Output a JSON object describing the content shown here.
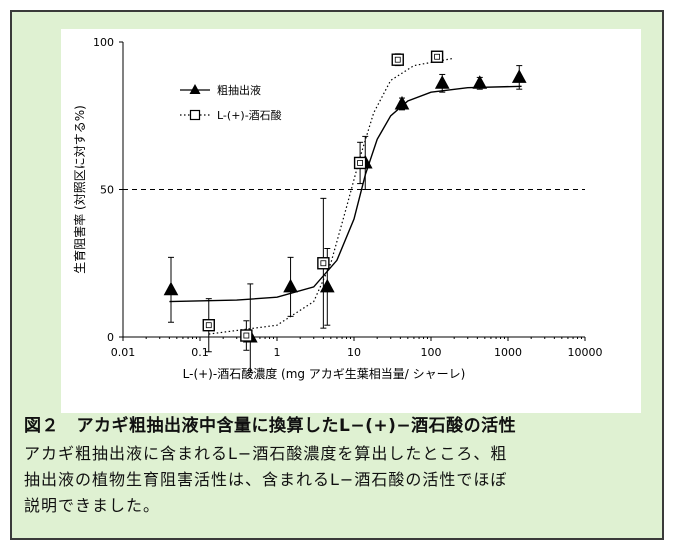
{
  "figure_title": "図２　アカギ粗抽出液中含量に換算したL−(+)−酒石酸の活性",
  "caption_lines": [
    "アカギ粗抽出液に含まれるL−酒石酸濃度を算出したところ、粗",
    "抽出液の植物生育阻害活性は、含まれるL−酒石酸の活性でほぼ",
    "説明できました。"
  ],
  "colors": {
    "panel_background": "#dff1d2",
    "border": "#3a3a3a",
    "series_color": "#000000"
  },
  "chart_data": {
    "type": "scatter",
    "xlabel": "L-(+)-酒石酸濃度 (mg アカギ生葉相当量/ シャーレ)",
    "ylabel": "生育阻害率 (対照区に対する%)",
    "x_scale": "log",
    "xlim": [
      0.01,
      10000
    ],
    "ylim": [
      0,
      100
    ],
    "x_ticks": [
      "0.01",
      "0.1",
      "1",
      "10",
      "100",
      "1000",
      "10000"
    ],
    "x_tick_values": [
      0.01,
      0.1,
      1,
      10,
      100,
      1000,
      10000
    ],
    "y_ticks": [
      "0",
      "50",
      "100"
    ],
    "y_tick_values": [
      0,
      50,
      100
    ],
    "reference_line": {
      "y": 50,
      "style": "dashed"
    },
    "legend_position": "top-left",
    "grid": false,
    "series": [
      {
        "name": "粗抽出液",
        "marker": "filled-triangle",
        "line": "solid",
        "points": [
          {
            "x": 0.042,
            "y": 16,
            "err": 11
          },
          {
            "x": 0.45,
            "y": 0,
            "err": 18
          },
          {
            "x": 1.5,
            "y": 17,
            "err": 10
          },
          {
            "x": 4.5,
            "y": 17,
            "err": 13
          },
          {
            "x": 14,
            "y": 59,
            "err": 9
          },
          {
            "x": 42,
            "y": 79,
            "err": 2
          },
          {
            "x": 140,
            "y": 86,
            "err": 3
          },
          {
            "x": 430,
            "y": 86,
            "err": 2
          },
          {
            "x": 1400,
            "y": 88,
            "err": 4
          }
        ],
        "curve": [
          {
            "x": 0.04,
            "y": 12
          },
          {
            "x": 0.3,
            "y": 12.5
          },
          {
            "x": 1,
            "y": 13.5
          },
          {
            "x": 3,
            "y": 17
          },
          {
            "x": 6,
            "y": 26
          },
          {
            "x": 10,
            "y": 40
          },
          {
            "x": 14,
            "y": 55
          },
          {
            "x": 20,
            "y": 67
          },
          {
            "x": 30,
            "y": 75
          },
          {
            "x": 50,
            "y": 80
          },
          {
            "x": 100,
            "y": 83
          },
          {
            "x": 300,
            "y": 84.5
          },
          {
            "x": 1500,
            "y": 85
          }
        ]
      },
      {
        "name": "L-(+)-酒石酸",
        "marker": "open-square",
        "line": "dotted",
        "points": [
          {
            "x": 0.13,
            "y": 4,
            "err": 9
          },
          {
            "x": 0.4,
            "y": 0.5,
            "err": 5
          },
          {
            "x": 4,
            "y": 25,
            "err": 22
          },
          {
            "x": 12,
            "y": 59,
            "err": 7
          },
          {
            "x": 37,
            "y": 94,
            "err": 2
          },
          {
            "x": 120,
            "y": 95,
            "err": 1
          }
        ],
        "curve": [
          {
            "x": 0.13,
            "y": 1
          },
          {
            "x": 1,
            "y": 4
          },
          {
            "x": 3,
            "y": 12
          },
          {
            "x": 5,
            "y": 25
          },
          {
            "x": 8,
            "y": 44
          },
          {
            "x": 12,
            "y": 61
          },
          {
            "x": 18,
            "y": 76
          },
          {
            "x": 30,
            "y": 87
          },
          {
            "x": 60,
            "y": 92
          },
          {
            "x": 200,
            "y": 94.5
          }
        ]
      }
    ]
  }
}
